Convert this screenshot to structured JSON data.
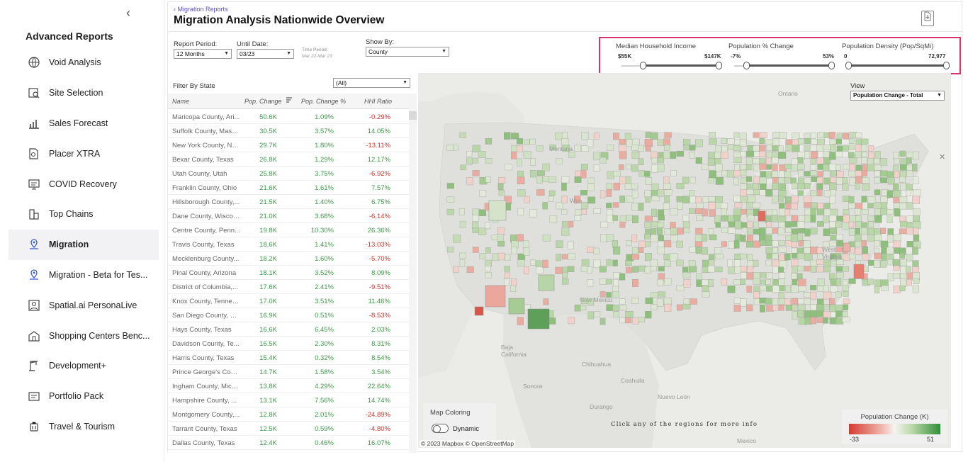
{
  "sidebar": {
    "collapse_glyph": "‹",
    "title": "Advanced Reports",
    "items": [
      {
        "label": "Void Analysis",
        "icon": "globe-icon",
        "active": false
      },
      {
        "label": "Site Selection",
        "icon": "map-pin-search-icon",
        "active": false
      },
      {
        "label": "Sales Forecast",
        "icon": "bar-chart-icon",
        "active": false
      },
      {
        "label": "Placer XTRA",
        "icon": "document-search-icon",
        "active": false
      },
      {
        "label": "COVID Recovery",
        "icon": "monitor-icon",
        "active": false
      },
      {
        "label": "Top Chains",
        "icon": "buildings-icon",
        "active": false
      },
      {
        "label": "Migration",
        "icon": "migration-pin-icon",
        "active": true
      },
      {
        "label": "Migration - Beta for Tes...",
        "icon": "migration-pin-icon",
        "active": false
      },
      {
        "label": "Spatial.ai PersonaLive",
        "icon": "persona-icon",
        "active": false
      },
      {
        "label": "Shopping Centers Benc...",
        "icon": "shopping-center-icon",
        "active": false
      },
      {
        "label": "Development+",
        "icon": "crane-icon",
        "active": false
      },
      {
        "label": "Portfolio Pack",
        "icon": "portfolio-icon",
        "active": false
      },
      {
        "label": "Travel & Tourism",
        "icon": "luggage-icon",
        "active": false
      }
    ]
  },
  "header": {
    "breadcrumb": "‹ Migration Reports",
    "title": "Migration Analysis  Nationwide Overview",
    "export_icon": "export-icon"
  },
  "controls": {
    "report_period": {
      "label": "Report Period:",
      "value": "12 Months"
    },
    "until_date": {
      "label": "Until Date:",
      "value": "03/23"
    },
    "time_period": {
      "label": "Time Period:",
      "value": "Mar 22-Mar 23"
    },
    "show_by": {
      "label": "Show By:",
      "value": "County"
    }
  },
  "sliders": [
    {
      "title": "Median Household Income",
      "min": "$55K",
      "max": "$147K",
      "low_frac": 0.22,
      "high_frac": 1.0
    },
    {
      "title": "Population % Change",
      "min": "-7%",
      "max": "53%",
      "low_frac": 0.12,
      "high_frac": 1.0
    },
    {
      "title": "Population Density (Pop/SqMi)",
      "min": "0",
      "max": "72,977",
      "low_frac": 0.02,
      "high_frac": 1.0
    }
  ],
  "table": {
    "filter_label": "Filter By State",
    "filter_value": "(All)",
    "columns": [
      "Name",
      "Pop. Change",
      "Pop. Change %",
      "HHI Ratio"
    ],
    "sort_icon": "sort-desc-icon",
    "rows": [
      [
        "Maricopa County, Ari...",
        "50.6K",
        "1.09%",
        "-0.29%"
      ],
      [
        "Suffolk County, Mass...",
        "30.5K",
        "3.57%",
        "14.05%"
      ],
      [
        "New York County, Ne...",
        "29.7K",
        "1.80%",
        "-13.11%"
      ],
      [
        "Bexar County, Texas",
        "26.8K",
        "1.29%",
        "12.17%"
      ],
      [
        "Utah County, Utah",
        "25.8K",
        "3.75%",
        "-6.92%"
      ],
      [
        "Franklin County, Ohio",
        "21.6K",
        "1.61%",
        "7.57%"
      ],
      [
        "Hillsborough County,...",
        "21.5K",
        "1.40%",
        "6.75%"
      ],
      [
        "Dane County, Wiscon...",
        "21.0K",
        "3.68%",
        "-6.14%"
      ],
      [
        "Centre County, Penn...",
        "19.8K",
        "10.30%",
        "26.36%"
      ],
      [
        "Travis County, Texas",
        "18.6K",
        "1.41%",
        "-13.03%"
      ],
      [
        "Mecklenburg County...",
        "18.2K",
        "1.60%",
        "-5.70%"
      ],
      [
        "Pinal County, Arizona",
        "18.1K",
        "3.52%",
        "8.09%"
      ],
      [
        "District of Columbia,...",
        "17.6K",
        "2.41%",
        "-9.51%"
      ],
      [
        "Knox County, Tennes...",
        "17.0K",
        "3.51%",
        "11.46%"
      ],
      [
        "San Diego County, Ca...",
        "16.9K",
        "0.51%",
        "-8.53%"
      ],
      [
        "Hays County, Texas",
        "16.6K",
        "6.45%",
        "2.03%"
      ],
      [
        "Davidson County, Te...",
        "16.5K",
        "2.30%",
        "8.31%"
      ],
      [
        "Harris County, Texas",
        "15.4K",
        "0.32%",
        "8.54%"
      ],
      [
        "Prince George's Coun...",
        "14.7K",
        "1.58%",
        "3.54%"
      ],
      [
        "Ingham County, Mich...",
        "13.8K",
        "4.29%",
        "22.64%"
      ],
      [
        "Hampshire County, ...",
        "13.1K",
        "7.56%",
        "14.74%"
      ],
      [
        "Montgomery County,...",
        "12.8K",
        "2.01%",
        "-24.89%"
      ],
      [
        "Tarrant County, Texas",
        "12.5K",
        "0.59%",
        "-4.80%"
      ],
      [
        "Dallas County, Texas",
        "12.4K",
        "0.46%",
        "16.07%"
      ]
    ]
  },
  "map": {
    "view_label": "View",
    "view_value": "Population Change - Total",
    "close_glyph": "✕",
    "place_labels": [
      "Ontario",
      "Montana",
      "Wyo",
      "New Mexico",
      "Baja California",
      "Chihuahua",
      "Coahuila",
      "Sonora",
      "Nuevo León",
      "Durango",
      "West Virginia",
      "Mexico"
    ],
    "map_coloring_label": "Map Coloring",
    "toggle_label": "Dynamic",
    "hint": "Click any of the regions for more info",
    "attribution": "© 2023 Mapbox  © OpenStreetMap",
    "legend": {
      "title": "Population Change (K)",
      "min": "-33",
      "max": "51"
    },
    "colors": {
      "negative": "#d33b32",
      "neutral": "#f6f4f0",
      "positive": "#2f8f3a"
    }
  },
  "colors": {
    "accent": "#5a4fcf",
    "highlight_border": "#d9336a",
    "positive": "#3d9a4a",
    "negative": "#d0342c"
  }
}
